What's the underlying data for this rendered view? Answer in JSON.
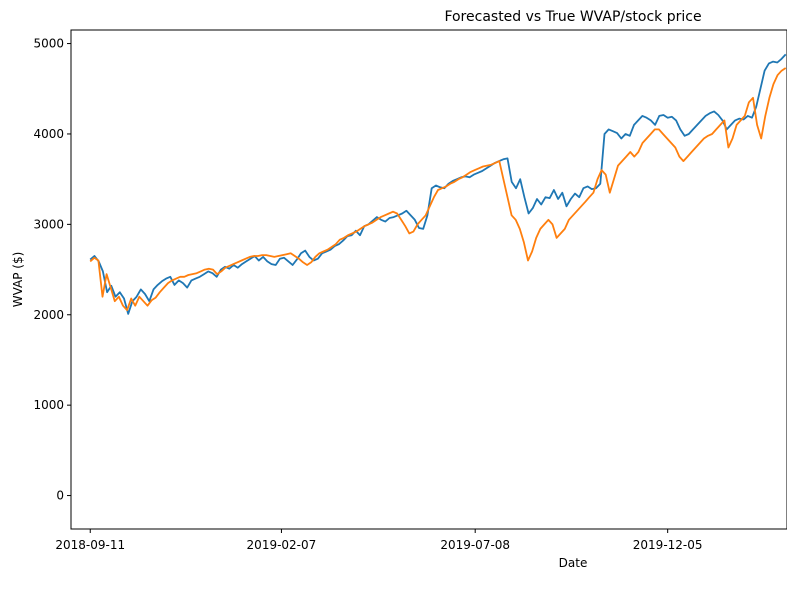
{
  "chart_data": {
    "type": "line",
    "title": "Forecasted vs True WVAP/stock price",
    "xlabel": "Date",
    "ylabel": "WVAP ($)",
    "x_start": "2018-09-11",
    "x_end": "2020-03-06",
    "xlim": [
      "2018-08-27",
      "2020-03-07"
    ],
    "ylim": [
      -370,
      5150
    ],
    "x_ticks": [
      "2018-09-11",
      "2019-02-07",
      "2019-07-08",
      "2019-12-05"
    ],
    "y_ticks": [
      0,
      1000,
      2000,
      3000,
      4000,
      5000
    ],
    "grid": false,
    "series": [
      {
        "color": "#1f77b4",
        "values": [
          2610,
          2650,
          2590,
          2480,
          2250,
          2320,
          2200,
          2250,
          2180,
          2010,
          2150,
          2200,
          2280,
          2230,
          2150,
          2280,
          2330,
          2370,
          2400,
          2420,
          2330,
          2380,
          2350,
          2300,
          2380,
          2400,
          2420,
          2450,
          2480,
          2460,
          2420,
          2500,
          2530,
          2510,
          2550,
          2520,
          2560,
          2590,
          2620,
          2650,
          2600,
          2640,
          2590,
          2560,
          2550,
          2620,
          2630,
          2590,
          2550,
          2610,
          2680,
          2710,
          2640,
          2600,
          2620,
          2680,
          2700,
          2720,
          2760,
          2780,
          2820,
          2870,
          2880,
          2930,
          2880,
          2980,
          3000,
          3040,
          3080,
          3050,
          3030,
          3070,
          3080,
          3100,
          3120,
          3150,
          3100,
          3050,
          2960,
          2950,
          3100,
          3400,
          3430,
          3410,
          3400,
          3450,
          3480,
          3500,
          3520,
          3530,
          3520,
          3550,
          3570,
          3590,
          3620,
          3650,
          3680,
          3700,
          3720,
          3730,
          3470,
          3400,
          3500,
          3300,
          3120,
          3180,
          3280,
          3220,
          3300,
          3290,
          3380,
          3280,
          3350,
          3200,
          3280,
          3340,
          3300,
          3400,
          3420,
          3390,
          3400,
          3450,
          4000,
          4050,
          4030,
          4010,
          3950,
          4000,
          3980,
          4100,
          4150,
          4200,
          4180,
          4150,
          4100,
          4200,
          4210,
          4180,
          4190,
          4150,
          4050,
          3980,
          4000,
          4050,
          4100,
          4150,
          4200,
          4230,
          4250,
          4210,
          4150,
          4050,
          4100,
          4150,
          4170,
          4160,
          4200,
          4180,
          4300,
          4500,
          4700,
          4780,
          4800,
          4790,
          4830,
          4880
        ]
      },
      {
        "color": "#ff7f0e",
        "values": [
          2590,
          2630,
          2600,
          2200,
          2450,
          2300,
          2150,
          2200,
          2100,
          2050,
          2180,
          2100,
          2200,
          2150,
          2100,
          2160,
          2190,
          2250,
          2300,
          2350,
          2380,
          2400,
          2420,
          2420,
          2440,
          2450,
          2460,
          2480,
          2500,
          2510,
          2500,
          2450,
          2480,
          2520,
          2540,
          2560,
          2580,
          2600,
          2620,
          2640,
          2650,
          2650,
          2660,
          2660,
          2650,
          2640,
          2650,
          2660,
          2670,
          2680,
          2650,
          2620,
          2580,
          2550,
          2580,
          2640,
          2680,
          2700,
          2720,
          2750,
          2780,
          2830,
          2850,
          2880,
          2900,
          2920,
          2950,
          2980,
          3000,
          3020,
          3050,
          3080,
          3100,
          3120,
          3140,
          3120,
          3050,
          2980,
          2900,
          2920,
          3000,
          3050,
          3100,
          3200,
          3300,
          3380,
          3400,
          3420,
          3450,
          3470,
          3500,
          3520,
          3550,
          3580,
          3600,
          3620,
          3640,
          3650,
          3660,
          3680,
          3700,
          3500,
          3300,
          3100,
          3050,
          2950,
          2800,
          2600,
          2700,
          2850,
          2950,
          3000,
          3050,
          3000,
          2850,
          2900,
          2950,
          3050,
          3100,
          3150,
          3200,
          3250,
          3300,
          3350,
          3500,
          3600,
          3550,
          3350,
          3500,
          3650,
          3700,
          3750,
          3800,
          3750,
          3800,
          3900,
          3950,
          4000,
          4050,
          4050,
          4000,
          3950,
          3900,
          3850,
          3750,
          3700,
          3750,
          3800,
          3850,
          3900,
          3950,
          3980,
          4000,
          4050,
          4100,
          4150,
          3850,
          3950,
          4100,
          4150,
          4200,
          4350,
          4400,
          4100,
          3950,
          4200,
          4400,
          4550,
          4650,
          4700,
          4730
        ]
      }
    ]
  }
}
